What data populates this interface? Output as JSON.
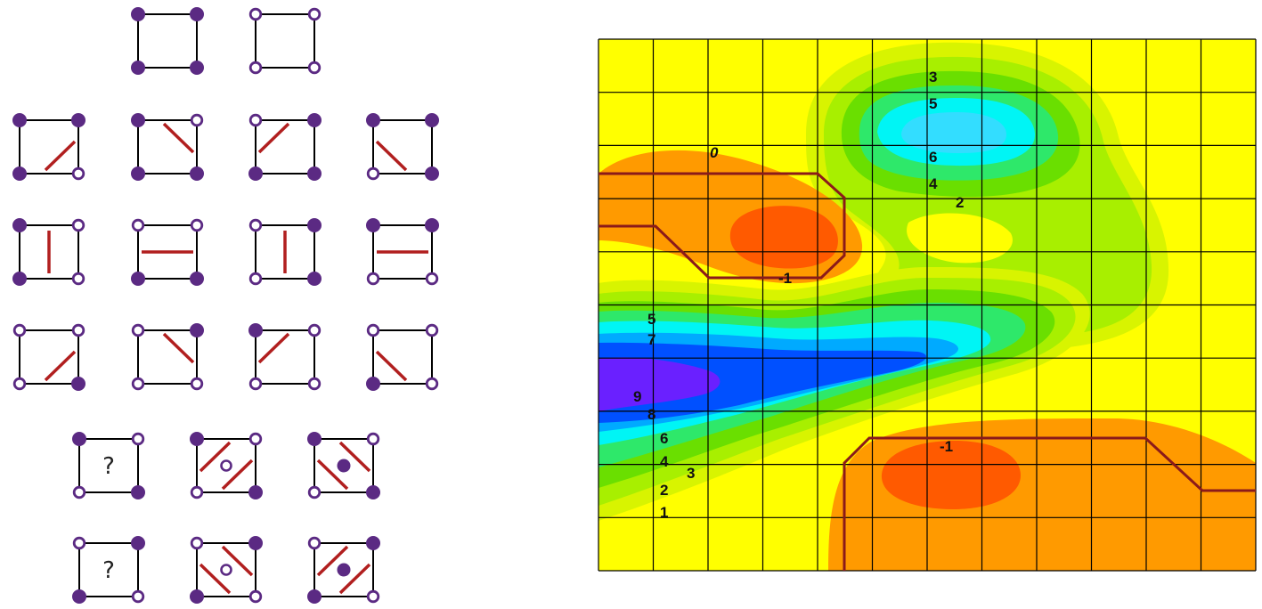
{
  "colors": {
    "vertex": "#5b2a83",
    "square_edge": "#000000",
    "cut_line": "#b11f1f",
    "contour_path": "#8b1a1a",
    "grid": "#000000",
    "level_minus1": "#ff5a00",
    "level_0": "#ff9a00",
    "level_1": "#ffff00",
    "level_2": "#d8f400",
    "level_3": "#a8ef00",
    "level_4": "#6adf00",
    "level_5": "#2ee86a",
    "level_6": "#00f5f5",
    "level_7": "#00aaff",
    "level_8": "#0050ff",
    "level_9": "#6a20ff"
  },
  "case_table": {
    "question_mark": "?",
    "rows": [
      {
        "cells": [
          {
            "name": "case-all-filled",
            "vertices": [
              "f",
              "f",
              "f",
              "f"
            ],
            "cuts": []
          },
          {
            "name": "case-all-hollow",
            "vertices": [
              "h",
              "h",
              "h",
              "h"
            ],
            "cuts": []
          }
        ]
      },
      {
        "cells": [
          {
            "name": "case-br-hollow",
            "vertices": [
              "f",
              "f",
              "h",
              "f"
            ],
            "cuts": [
              "br"
            ]
          },
          {
            "name": "case-tr-hollow",
            "vertices": [
              "f",
              "h",
              "f",
              "f"
            ],
            "cuts": [
              "tr"
            ]
          },
          {
            "name": "case-tl-hollow",
            "vertices": [
              "h",
              "f",
              "f",
              "f"
            ],
            "cuts": [
              "tl"
            ]
          },
          {
            "name": "case-bl-hollow",
            "vertices": [
              "f",
              "f",
              "f",
              "h"
            ],
            "cuts": [
              "bl"
            ]
          }
        ]
      },
      {
        "cells": [
          {
            "name": "case-left-filled",
            "vertices": [
              "f",
              "h",
              "h",
              "f"
            ],
            "cuts": [
              "v"
            ]
          },
          {
            "name": "case-top-hollow",
            "vertices": [
              "h",
              "h",
              "f",
              "f"
            ],
            "cuts": [
              "h"
            ]
          },
          {
            "name": "case-right-filled",
            "vertices": [
              "h",
              "f",
              "f",
              "h"
            ],
            "cuts": [
              "v"
            ]
          },
          {
            "name": "case-top-filled",
            "vertices": [
              "f",
              "f",
              "h",
              "h"
            ],
            "cuts": [
              "h"
            ]
          }
        ]
      },
      {
        "cells": [
          {
            "name": "case-br-filled",
            "vertices": [
              "h",
              "h",
              "f",
              "h"
            ],
            "cuts": [
              "br"
            ]
          },
          {
            "name": "case-tr-filled",
            "vertices": [
              "h",
              "f",
              "h",
              "h"
            ],
            "cuts": [
              "tr"
            ]
          },
          {
            "name": "case-tl-filled",
            "vertices": [
              "f",
              "h",
              "h",
              "h"
            ],
            "cuts": [
              "tl"
            ]
          },
          {
            "name": "case-bl-filled",
            "vertices": [
              "h",
              "h",
              "h",
              "f"
            ],
            "cuts": [
              "bl"
            ]
          }
        ]
      },
      {
        "cells": [
          {
            "name": "case-saddle-a-question",
            "vertices": [
              "f",
              "h",
              "f",
              "h"
            ],
            "cuts": [],
            "question": true
          },
          {
            "name": "case-saddle-a-hollow-center",
            "vertices": [
              "f",
              "h",
              "f",
              "h"
            ],
            "cuts": [
              "tl",
              "br"
            ],
            "center": "h"
          },
          {
            "name": "case-saddle-a-filled-center",
            "vertices": [
              "f",
              "h",
              "f",
              "h"
            ],
            "cuts": [
              "tr",
              "bl"
            ],
            "center": "f"
          }
        ]
      },
      {
        "cells": [
          {
            "name": "case-saddle-b-question",
            "vertices": [
              "h",
              "f",
              "h",
              "f"
            ],
            "cuts": [],
            "question": true
          },
          {
            "name": "case-saddle-b-hollow-center",
            "vertices": [
              "h",
              "f",
              "h",
              "f"
            ],
            "cuts": [
              "tr",
              "bl"
            ],
            "center": "h"
          },
          {
            "name": "case-saddle-b-filled-center",
            "vertices": [
              "h",
              "f",
              "h",
              "f"
            ],
            "cuts": [
              "tl",
              "br"
            ],
            "center": "f"
          }
        ]
      }
    ]
  },
  "contour_map": {
    "columns": 12,
    "rows": 10,
    "labels": [
      {
        "text": "3",
        "italic": false
      },
      {
        "text": "5",
        "italic": false
      },
      {
        "text": "6",
        "italic": false
      },
      {
        "text": "4",
        "italic": false
      },
      {
        "text": "2",
        "italic": false
      },
      {
        "text": "0",
        "italic": true
      },
      {
        "text": "-1",
        "italic": false
      },
      {
        "text": "5",
        "italic": false
      },
      {
        "text": "7",
        "italic": false
      },
      {
        "text": "9",
        "italic": false
      },
      {
        "text": "8",
        "italic": false
      },
      {
        "text": "6",
        "italic": false
      },
      {
        "text": "4",
        "italic": false
      },
      {
        "text": "3",
        "italic": false
      },
      {
        "text": "2",
        "italic": false
      },
      {
        "text": "1",
        "italic": false
      },
      {
        "text": "-1",
        "italic": false
      }
    ]
  }
}
